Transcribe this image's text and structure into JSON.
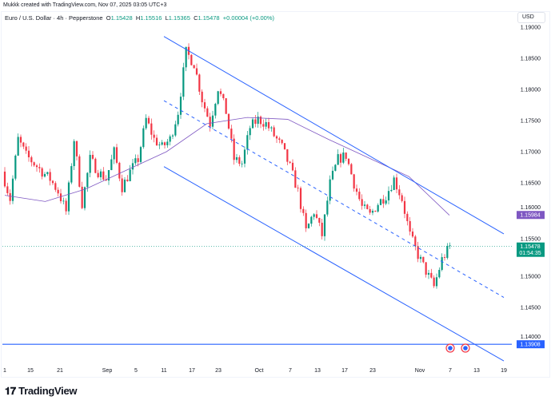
{
  "credit": "Mukkk created with TradingView.com, Nov 07, 2025 03:05 UTC+3",
  "legend": {
    "symbol": "Euro / U.S. Dollar · 4h · Pepperstone",
    "o_label": "O",
    "o": "1.15428",
    "h_label": "H",
    "h": "1.15516",
    "l_label": "L",
    "l": "1.15365",
    "c_label": "C",
    "c": "1.15478",
    "change": "+0.00004 (+0.00%)"
  },
  "currency": "USD",
  "brand": "TradingView",
  "chart_data": {
    "type": "candlestick",
    "colors": {
      "up": "#089981",
      "down": "#F23645",
      "ma": "#7E57C2",
      "channel": "#2962FF",
      "support": "#2962FF"
    },
    "x_ticks": [
      "1",
      "15",
      "21",
      "Sep",
      "5",
      "11",
      "17",
      "23",
      "Oct",
      "7",
      "13",
      "17",
      "23",
      "Nov",
      "7",
      "13",
      "19"
    ],
    "y_ticks": [
      "1.19000",
      "1.18500",
      "1.18000",
      "1.17500",
      "1.17000",
      "1.16500",
      "1.16000",
      "1.15500",
      "1.15000",
      "1.14500",
      "1.14000"
    ],
    "ylim": [
      1.1345,
      1.1915
    ],
    "closes": [
      1.1668,
      1.1624,
      1.172,
      1.1694,
      1.1681,
      1.1668,
      1.1656,
      1.1636,
      1.1604,
      1.172,
      1.1617,
      1.1688,
      1.1668,
      1.1656,
      1.17,
      1.1643,
      1.1668,
      1.1688,
      1.1752,
      1.172,
      1.1707,
      1.172,
      1.1764,
      1.186,
      1.1841,
      1.1784,
      1.1745,
      1.1803,
      1.1764,
      1.1688,
      1.1681,
      1.1739,
      1.1752,
      1.1745,
      1.1726,
      1.1707,
      1.1675,
      1.1636,
      1.1572,
      1.1604,
      1.1566,
      1.1649,
      1.1688,
      1.1694,
      1.1649,
      1.1611,
      1.1598,
      1.1617,
      1.163,
      1.1656,
      1.1624,
      1.1566,
      1.1534,
      1.1508,
      1.1483,
      1.1527,
      1.15478
    ],
    "moving_average": [
      1.163,
      1.162,
      1.164,
      1.167,
      1.17,
      1.1745,
      1.1755,
      1.1752,
      1.172,
      1.169,
      1.166,
      1.1598
    ],
    "channel": {
      "upper": [
        1.1885,
        1.1568
      ],
      "middle": [
        1.1782,
        1.1466
      ],
      "lower": [
        1.1676,
        1.1364
      ],
      "start": "Sep 11",
      "end": "Nov 19"
    },
    "support_level": 1.13908,
    "price_labels": {
      "ma": "1.15984",
      "last": "1.15478",
      "countdown": "01:54:35",
      "support": "1.13908"
    }
  }
}
